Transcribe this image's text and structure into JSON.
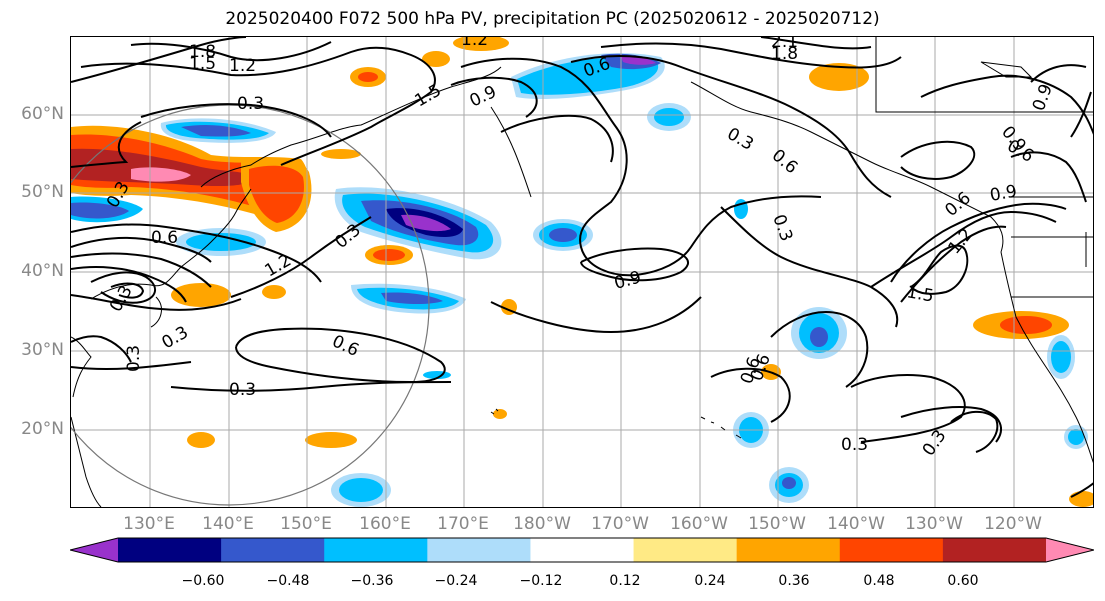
{
  "title": "2025020400 F072 500 hPa PV, precipitation PC (2025020612 - 2025020712)",
  "lat_labels": [
    "60°N",
    "50°N",
    "40°N",
    "30°N",
    "20°N"
  ],
  "lon_labels": [
    "130°E",
    "140°E",
    "150°E",
    "160°E",
    "170°E",
    "180°W",
    "170°W",
    "160°W",
    "150°W",
    "140°W",
    "130°W",
    "120°W"
  ],
  "colorbar": {
    "tick_labels": [
      "−0.60",
      "−0.48",
      "−0.36",
      "−0.24",
      "−0.12",
      "0.12",
      "0.24",
      "0.36",
      "0.48",
      "0.60"
    ],
    "colors": [
      "#9932CC",
      "#000080",
      "#3558CC",
      "#00BFFF",
      "#AEDDFA",
      "#FFFFFF",
      "#FFEA85",
      "#FFA500",
      "#FF4500",
      "#B22222",
      "#FF8AB3"
    ]
  },
  "contour_labels": [
    "1.8",
    "1.5",
    "1.2",
    "0.3",
    "0.3",
    "0.6",
    "0.3",
    "1.2",
    "0.3",
    "0.3",
    "0.6",
    "0.3",
    "1.2",
    "1.5",
    "0.9",
    "0.6",
    "0.3",
    "0.9",
    "0.3",
    "0.6",
    "0.3",
    "0.9",
    "1.2",
    "1.5",
    "0.9",
    "0.6",
    "0.6",
    "0.9",
    "0.3",
    "0.3",
    "0.6",
    "0.6",
    "1.8",
    "2.1"
  ]
}
